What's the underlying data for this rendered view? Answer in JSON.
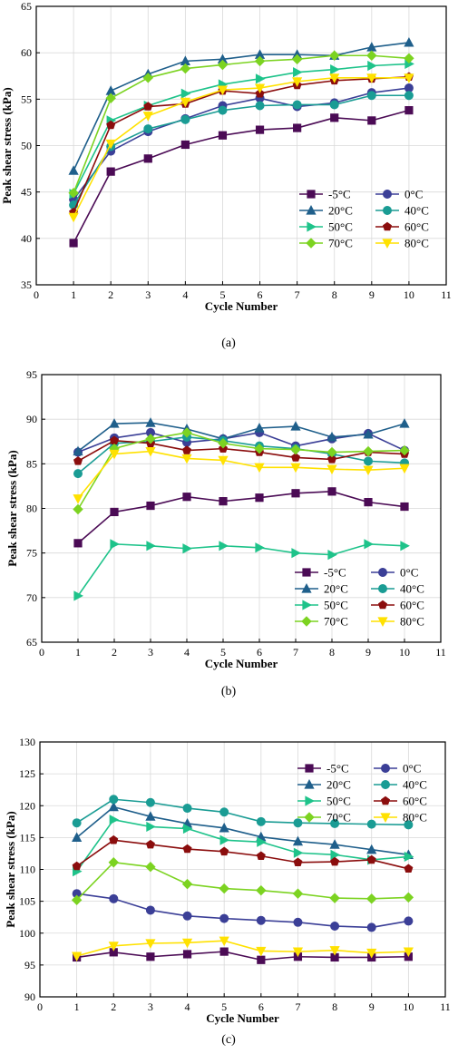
{
  "chart_data": [
    {
      "type": "line",
      "caption": "(a)",
      "xlabel": "Cycle Number",
      "ylabel": "Peak shear stress (kPa)",
      "xlim": [
        0,
        11
      ],
      "ylim": [
        35,
        65
      ],
      "xticks": [
        "0",
        "1",
        "2",
        "3",
        "4",
        "5",
        "6",
        "7",
        "8",
        "9",
        "10",
        "11"
      ],
      "yticks": [
        "35",
        "40",
        "45",
        "50",
        "55",
        "60",
        "65"
      ],
      "grid": true,
      "legend_position": "bottom-right",
      "x": [
        1,
        2,
        3,
        4,
        5,
        6,
        7,
        8,
        9,
        10
      ],
      "series": [
        {
          "name": "-5°C",
          "color": "#4b0b55",
          "marker": "square",
          "values": [
            39.5,
            47.2,
            48.6,
            50.1,
            51.1,
            51.7,
            51.9,
            53.0,
            52.7,
            53.8
          ]
        },
        {
          "name": "0°C",
          "color": "#3b3f97",
          "marker": "circle",
          "values": [
            44.2,
            49.4,
            51.5,
            52.9,
            54.3,
            55.1,
            54.2,
            54.6,
            55.7,
            56.2
          ]
        },
        {
          "name": "20°C",
          "color": "#1f5f8b",
          "marker": "triangle",
          "values": [
            47.3,
            55.9,
            57.7,
            59.1,
            59.3,
            59.8,
            59.8,
            59.7,
            60.6,
            61.1
          ]
        },
        {
          "name": "40°C",
          "color": "#1a9c94",
          "marker": "circle",
          "values": [
            43.6,
            49.9,
            51.8,
            52.8,
            53.8,
            54.3,
            54.4,
            54.4,
            55.4,
            55.4
          ]
        },
        {
          "name": "50°C",
          "color": "#1ec38a",
          "marker": "triangle-right",
          "values": [
            44.8,
            52.7,
            54.3,
            55.6,
            56.6,
            57.2,
            57.9,
            58.2,
            58.6,
            58.8
          ]
        },
        {
          "name": "60°C",
          "color": "#8b0d0d",
          "marker": "pentagon",
          "values": [
            42.8,
            52.2,
            54.2,
            54.5,
            55.9,
            55.6,
            56.5,
            57.0,
            57.2,
            57.4
          ]
        },
        {
          "name": "70°C",
          "color": "#7cd321",
          "marker": "diamond",
          "values": [
            44.9,
            55.1,
            57.3,
            58.3,
            58.7,
            59.1,
            59.3,
            59.7,
            59.7,
            59.4
          ]
        },
        {
          "name": "80°C",
          "color": "#ffe100",
          "marker": "triangle-down",
          "values": [
            42.3,
            50.2,
            53.2,
            54.7,
            56.0,
            56.2,
            56.9,
            57.3,
            57.3,
            57.3
          ]
        }
      ]
    },
    {
      "type": "line",
      "caption": "(b)",
      "xlabel": "Cycle Number",
      "ylabel": "Peak shear stress (kPa)",
      "xlim": [
        0,
        11
      ],
      "ylim": [
        65,
        95
      ],
      "xticks": [
        "0",
        "1",
        "2",
        "3",
        "4",
        "5",
        "6",
        "7",
        "8",
        "9",
        "10",
        "11"
      ],
      "yticks": [
        "65",
        "70",
        "75",
        "80",
        "85",
        "90",
        "95"
      ],
      "grid": true,
      "legend_position": "bottom-right",
      "x": [
        1,
        2,
        3,
        4,
        5,
        6,
        7,
        8,
        9,
        10
      ],
      "series": [
        {
          "name": "-5°C",
          "color": "#4b0b55",
          "marker": "square",
          "values": [
            76.1,
            79.6,
            80.3,
            81.3,
            80.8,
            81.2,
            81.7,
            81.9,
            80.7,
            80.2
          ]
        },
        {
          "name": "0°C",
          "color": "#3b3f97",
          "marker": "circle",
          "values": [
            86.3,
            87.9,
            88.5,
            87.4,
            87.8,
            88.5,
            87.0,
            87.8,
            88.4,
            86.5
          ]
        },
        {
          "name": "20°C",
          "color": "#1f5f8b",
          "marker": "triangle",
          "values": [
            86.4,
            89.5,
            89.6,
            88.9,
            87.8,
            89.0,
            89.2,
            88.0,
            88.3,
            89.5
          ]
        },
        {
          "name": "40°C",
          "color": "#1a9c94",
          "marker": "circle",
          "values": [
            83.9,
            87.3,
            87.5,
            88.0,
            87.6,
            87.0,
            86.7,
            86.1,
            85.3,
            85.1
          ]
        },
        {
          "name": "50°C",
          "color": "#1ec38a",
          "marker": "triangle-right",
          "values": [
            70.2,
            76.0,
            75.8,
            75.5,
            75.8,
            75.6,
            75.0,
            74.8,
            76.0,
            75.8
          ]
        },
        {
          "name": "60°C",
          "color": "#8b0d0d",
          "marker": "pentagon",
          "values": [
            85.3,
            87.6,
            87.3,
            86.5,
            86.7,
            86.3,
            85.7,
            85.5,
            86.3,
            86.1
          ]
        },
        {
          "name": "70°C",
          "color": "#7cd321",
          "marker": "diamond",
          "values": [
            79.9,
            86.7,
            87.8,
            88.5,
            87.3,
            86.7,
            86.6,
            86.3,
            86.4,
            86.5
          ]
        },
        {
          "name": "80°C",
          "color": "#ffe100",
          "marker": "triangle-down",
          "values": [
            81.1,
            86.1,
            86.4,
            85.6,
            85.4,
            84.6,
            84.6,
            84.4,
            84.3,
            84.5
          ]
        }
      ]
    },
    {
      "type": "line",
      "caption": "(c)",
      "xlabel": "Cycle Number",
      "ylabel": "Peak shear stress (kPa)",
      "xlim": [
        0,
        11
      ],
      "ylim": [
        90,
        130
      ],
      "xticks": [
        "0",
        "1",
        "2",
        "3",
        "4",
        "5",
        "6",
        "7",
        "8",
        "9",
        "10",
        "11"
      ],
      "yticks": [
        "90",
        "95",
        "100",
        "105",
        "110",
        "115",
        "120",
        "125",
        "130"
      ],
      "grid": true,
      "legend_position": "top-right",
      "x": [
        1,
        2,
        3,
        4,
        5,
        6,
        7,
        8,
        9,
        10
      ],
      "series": [
        {
          "name": "-5°C",
          "color": "#4b0b55",
          "marker": "square",
          "values": [
            96.2,
            97.0,
            96.3,
            96.7,
            97.1,
            95.8,
            96.3,
            96.2,
            96.2,
            96.3
          ]
        },
        {
          "name": "0°C",
          "color": "#3b3f97",
          "marker": "circle",
          "values": [
            106.2,
            105.4,
            103.6,
            102.7,
            102.3,
            102.0,
            101.7,
            101.1,
            100.9,
            101.9
          ]
        },
        {
          "name": "20°C",
          "color": "#1f5f8b",
          "marker": "triangle",
          "values": [
            115.0,
            119.8,
            118.3,
            117.2,
            116.5,
            115.1,
            114.4,
            113.9,
            113.1,
            112.3
          ]
        },
        {
          "name": "40°C",
          "color": "#1a9c94",
          "marker": "circle",
          "values": [
            117.3,
            121.0,
            120.5,
            119.6,
            119.0,
            117.5,
            117.3,
            117.2,
            117.1,
            117.0
          ]
        },
        {
          "name": "50°C",
          "color": "#1ec38a",
          "marker": "triangle-right",
          "values": [
            109.7,
            117.8,
            116.7,
            116.4,
            114.6,
            114.3,
            112.6,
            112.3,
            111.5,
            112.0
          ]
        },
        {
          "name": "60°C",
          "color": "#8b0d0d",
          "marker": "pentagon",
          "values": [
            110.5,
            114.6,
            113.9,
            113.2,
            112.8,
            112.1,
            111.1,
            111.2,
            111.5,
            110.1
          ]
        },
        {
          "name": "70°C",
          "color": "#7cd321",
          "marker": "diamond",
          "values": [
            105.2,
            111.1,
            110.4,
            107.7,
            107.0,
            106.7,
            106.2,
            105.5,
            105.4,
            105.6
          ]
        },
        {
          "name": "80°C",
          "color": "#ffe100",
          "marker": "triangle-down",
          "values": [
            96.4,
            98.0,
            98.4,
            98.5,
            98.8,
            97.2,
            97.1,
            97.3,
            96.9,
            97.1
          ]
        }
      ]
    }
  ]
}
